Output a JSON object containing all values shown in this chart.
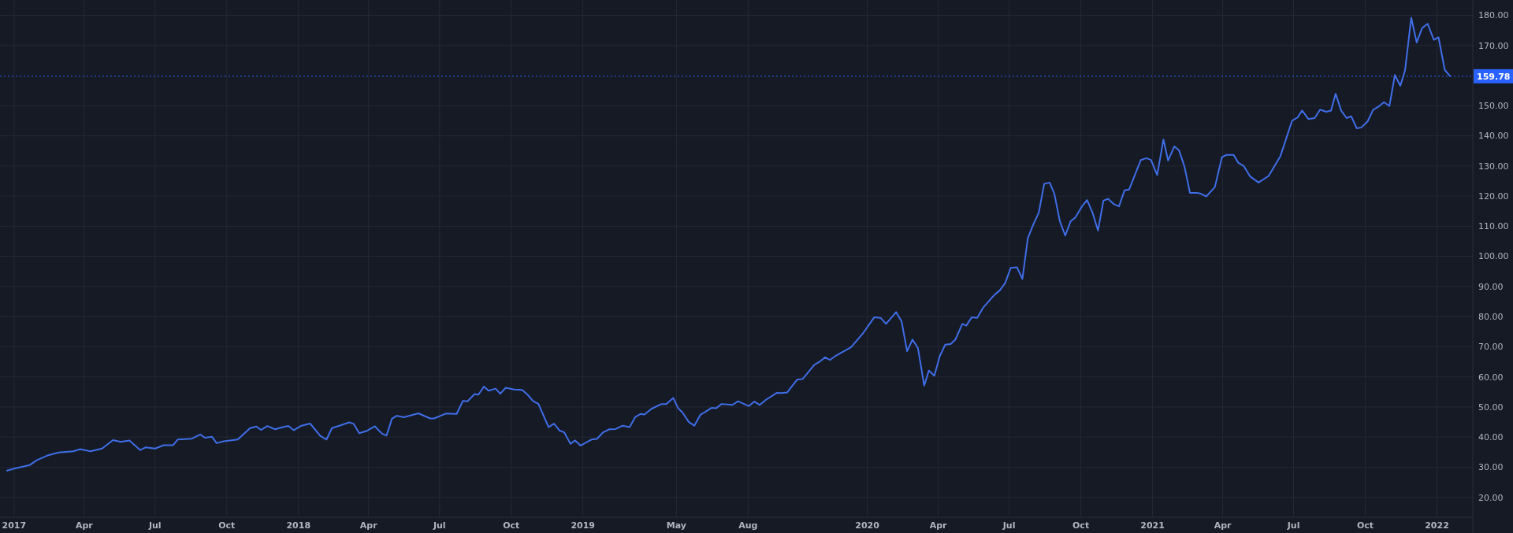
{
  "chart_data": {
    "type": "line",
    "xlim": [
      "2016-12-14",
      "2022-02-16"
    ],
    "ylim": [
      13.4,
      185.1
    ],
    "xticks": [
      {
        "value": "2017-01-01",
        "label": "2017"
      },
      {
        "value": "2017-04-01",
        "label": "Apr"
      },
      {
        "value": "2017-07-01",
        "label": "Jul"
      },
      {
        "value": "2017-10-01",
        "label": "Oct"
      },
      {
        "value": "2018-01-01",
        "label": "2018"
      },
      {
        "value": "2018-04-01",
        "label": "Apr"
      },
      {
        "value": "2018-07-01",
        "label": "Jul"
      },
      {
        "value": "2018-10-01",
        "label": "Oct"
      },
      {
        "value": "2019-01-01",
        "label": "2019"
      },
      {
        "value": "2019-05-01",
        "label": "May"
      },
      {
        "value": "2019-08-01",
        "label": "Aug"
      },
      {
        "value": "2020-01-01",
        "label": "2020"
      },
      {
        "value": "2020-04-01",
        "label": "Apr"
      },
      {
        "value": "2020-07-01",
        "label": "Jul"
      },
      {
        "value": "2020-10-01",
        "label": "Oct"
      },
      {
        "value": "2021-01-01",
        "label": "2021"
      },
      {
        "value": "2021-04-01",
        "label": "Apr"
      },
      {
        "value": "2021-07-01",
        "label": "Jul"
      },
      {
        "value": "2021-10-01",
        "label": "Oct"
      },
      {
        "value": "2022-01-01",
        "label": "2022"
      }
    ],
    "yticks": [
      {
        "value": 20,
        "label": "20.00"
      },
      {
        "value": 30,
        "label": "30.00"
      },
      {
        "value": 40,
        "label": "40.00"
      },
      {
        "value": 50,
        "label": "50.00"
      },
      {
        "value": 60,
        "label": "60.00"
      },
      {
        "value": 70,
        "label": "70.00"
      },
      {
        "value": 80,
        "label": "80.00"
      },
      {
        "value": 90,
        "label": "90.00"
      },
      {
        "value": 100,
        "label": "100.00"
      },
      {
        "value": 110,
        "label": "110.00"
      },
      {
        "value": 120,
        "label": "120.00"
      },
      {
        "value": 130,
        "label": "130.00"
      },
      {
        "value": 140,
        "label": "140.00"
      },
      {
        "value": 150,
        "label": "150.00"
      },
      {
        "value": 170,
        "label": "170.00"
      },
      {
        "value": 180,
        "label": "180.00"
      }
    ],
    "grid": true,
    "line_style": "solid",
    "ref_lines": [
      {
        "axis": "y",
        "value": 159.78,
        "label": "159.78",
        "color": "#2962ff",
        "line_style": "dotted"
      }
    ],
    "series": [
      {
        "color": "#3f6ee8",
        "x": [
          "2016-12-23",
          "2017-01-02",
          "2017-01-21",
          "2017-01-30",
          "2017-02-14",
          "2017-02-27",
          "2017-03-18",
          "2017-03-27",
          "2017-04-09",
          "2017-04-24",
          "2017-05-08",
          "2017-05-18",
          "2017-05-29",
          "2017-06-12",
          "2017-06-19",
          "2017-07-01",
          "2017-07-12",
          "2017-07-24",
          "2017-07-30",
          "2017-08-17",
          "2017-08-28",
          "2017-09-03",
          "2017-09-12",
          "2017-09-18",
          "2017-09-27",
          "2017-10-15",
          "2017-10-31",
          "2017-11-08",
          "2017-11-14",
          "2017-11-22",
          "2017-12-02",
          "2017-12-13",
          "2017-12-19",
          "2017-12-26",
          "2018-01-04",
          "2018-01-16",
          "2018-01-29",
          "2018-02-06",
          "2018-02-13",
          "2018-02-24",
          "2018-03-07",
          "2018-03-13",
          "2018-03-20",
          "2018-03-30",
          "2018-04-09",
          "2018-04-18",
          "2018-04-24",
          "2018-05-01",
          "2018-05-07",
          "2018-05-16",
          "2018-06-04",
          "2018-06-19",
          "2018-06-24",
          "2018-07-09",
          "2018-07-23",
          "2018-07-31",
          "2018-08-06",
          "2018-08-15",
          "2018-08-20",
          "2018-08-27",
          "2018-09-02",
          "2018-09-11",
          "2018-09-17",
          "2018-09-24",
          "2018-10-05",
          "2018-10-15",
          "2018-10-22",
          "2018-10-29",
          "2018-11-05",
          "2018-11-18",
          "2018-11-25",
          "2018-12-02",
          "2018-12-08",
          "2018-12-16",
          "2018-12-22",
          "2018-12-29",
          "2019-01-12",
          "2019-01-19",
          "2019-01-27",
          "2019-02-04",
          "2019-02-12",
          "2019-02-21",
          "2019-03-02",
          "2019-03-09",
          "2019-03-16",
          "2019-03-21",
          "2019-03-30",
          "2019-04-12",
          "2019-04-18",
          "2019-04-27",
          "2019-05-03",
          "2019-05-09",
          "2019-05-17",
          "2019-05-24",
          "2019-06-01",
          "2019-06-06",
          "2019-06-15",
          "2019-06-21",
          "2019-06-28",
          "2019-07-12",
          "2019-07-19",
          "2019-08-02",
          "2019-08-09",
          "2019-08-16",
          "2019-08-24",
          "2019-09-07",
          "2019-09-12",
          "2019-09-20",
          "2019-10-03",
          "2019-10-10",
          "2019-10-25",
          "2019-10-31",
          "2019-11-08",
          "2019-11-14",
          "2019-11-22",
          "2019-12-11",
          "2019-12-26",
          "2020-01-10",
          "2020-01-18",
          "2020-01-25",
          "2020-02-07",
          "2020-02-14",
          "2020-02-21",
          "2020-02-28",
          "2020-03-06",
          "2020-03-14",
          "2020-03-20",
          "2020-03-27",
          "2020-04-03",
          "2020-04-10",
          "2020-04-17",
          "2020-04-23",
          "2020-05-02",
          "2020-05-07",
          "2020-05-14",
          "2020-05-21",
          "2020-05-29",
          "2020-06-12",
          "2020-06-19",
          "2020-06-26",
          "2020-07-03",
          "2020-07-11",
          "2020-07-18",
          "2020-07-25",
          "2020-08-01",
          "2020-08-08",
          "2020-08-15",
          "2020-08-22",
          "2020-08-28",
          "2020-09-04",
          "2020-09-11",
          "2020-09-18",
          "2020-09-24",
          "2020-10-03",
          "2020-10-09",
          "2020-10-16",
          "2020-10-23",
          "2020-10-30",
          "2020-11-05",
          "2020-11-12",
          "2020-11-19",
          "2020-11-26",
          "2020-12-02",
          "2020-12-17",
          "2020-12-24",
          "2020-12-30",
          "2021-01-07",
          "2021-01-15",
          "2021-01-21",
          "2021-01-29",
          "2021-02-04",
          "2021-02-11",
          "2021-02-18",
          "2021-02-27",
          "2021-03-04",
          "2021-03-11",
          "2021-03-22",
          "2021-03-31",
          "2021-04-06",
          "2021-04-15",
          "2021-04-21",
          "2021-04-28",
          "2021-05-06",
          "2021-05-17",
          "2021-05-30",
          "2021-06-14",
          "2021-06-29",
          "2021-07-06",
          "2021-07-12",
          "2021-07-20",
          "2021-07-28",
          "2021-08-04",
          "2021-08-12",
          "2021-08-18",
          "2021-08-24",
          "2021-08-31",
          "2021-09-07",
          "2021-09-13",
          "2021-09-20",
          "2021-09-26",
          "2021-10-04",
          "2021-10-11",
          "2021-10-18",
          "2021-10-25",
          "2021-11-01",
          "2021-11-08",
          "2021-11-15",
          "2021-11-21",
          "2021-11-29",
          "2021-12-06",
          "2021-12-13",
          "2021-12-20",
          "2021-12-28",
          "2022-01-03",
          "2022-01-11",
          "2022-01-18"
        ],
        "values": [
          28.9,
          29.6,
          30.7,
          32.3,
          34.0,
          34.9,
          35.3,
          36.0,
          35.3,
          36.2,
          39.0,
          38.4,
          38.9,
          35.7,
          36.6,
          36.2,
          37.3,
          37.3,
          39.2,
          39.5,
          40.9,
          39.8,
          40.1,
          38.0,
          38.6,
          39.2,
          43.0,
          43.5,
          42.4,
          43.7,
          42.6,
          43.4,
          43.7,
          42.3,
          43.7,
          44.5,
          40.4,
          39.2,
          43.0,
          43.9,
          44.9,
          44.4,
          41.3,
          42.1,
          43.6,
          41.2,
          40.5,
          46.1,
          47.1,
          46.6,
          47.9,
          46.2,
          46.2,
          47.8,
          47.7,
          52.0,
          51.9,
          54.3,
          54.1,
          56.8,
          55.4,
          56.1,
          54.4,
          56.4,
          55.8,
          55.7,
          54.1,
          52.0,
          51.0,
          43.3,
          44.5,
          42.2,
          41.6,
          37.8,
          38.9,
          37.2,
          39.2,
          39.4,
          41.6,
          42.6,
          42.7,
          43.8,
          43.3,
          46.6,
          47.7,
          47.5,
          49.4,
          51.0,
          51.0,
          53.0,
          49.7,
          48.1,
          45.0,
          43.8,
          47.5,
          48.2,
          49.7,
          49.6,
          51.0,
          50.7,
          51.9,
          50.3,
          51.8,
          50.7,
          52.4,
          54.7,
          54.6,
          54.8,
          59.1,
          59.3,
          64.0,
          64.9,
          66.5,
          65.6,
          67.1,
          69.8,
          74.3,
          79.8,
          79.6,
          77.6,
          81.5,
          78.4,
          68.5,
          72.4,
          69.5,
          57.1,
          62.1,
          60.4,
          66.9,
          70.7,
          70.9,
          72.4,
          77.6,
          77.0,
          79.8,
          79.6,
          83.1,
          87.2,
          88.7,
          91.2,
          96.2,
          96.4,
          92.5,
          106.1,
          110.6,
          114.5,
          124.1,
          124.5,
          120.8,
          111.7,
          106.9,
          111.7,
          112.9,
          116.8,
          118.7,
          114.5,
          108.6,
          118.5,
          119.1,
          117.4,
          116.6,
          121.9,
          122.2,
          132.0,
          132.6,
          132.0,
          127.0,
          138.8,
          131.8,
          136.5,
          135.2,
          129.8,
          121.1,
          121.1,
          120.8,
          119.9,
          123.0,
          132.9,
          133.7,
          133.7,
          131.1,
          130.0,
          126.6,
          124.5,
          126.7,
          133.2,
          145.0,
          146.1,
          148.4,
          145.6,
          145.9,
          148.7,
          148.0,
          148.4,
          154.0,
          148.4,
          145.9,
          146.5,
          142.5,
          142.8,
          144.8,
          148.6,
          149.7,
          151.2,
          149.9,
          160.2,
          156.6,
          161.7,
          179.2,
          171.0,
          175.8,
          177.2,
          171.9,
          172.7,
          161.9,
          159.8
        ]
      }
    ]
  }
}
